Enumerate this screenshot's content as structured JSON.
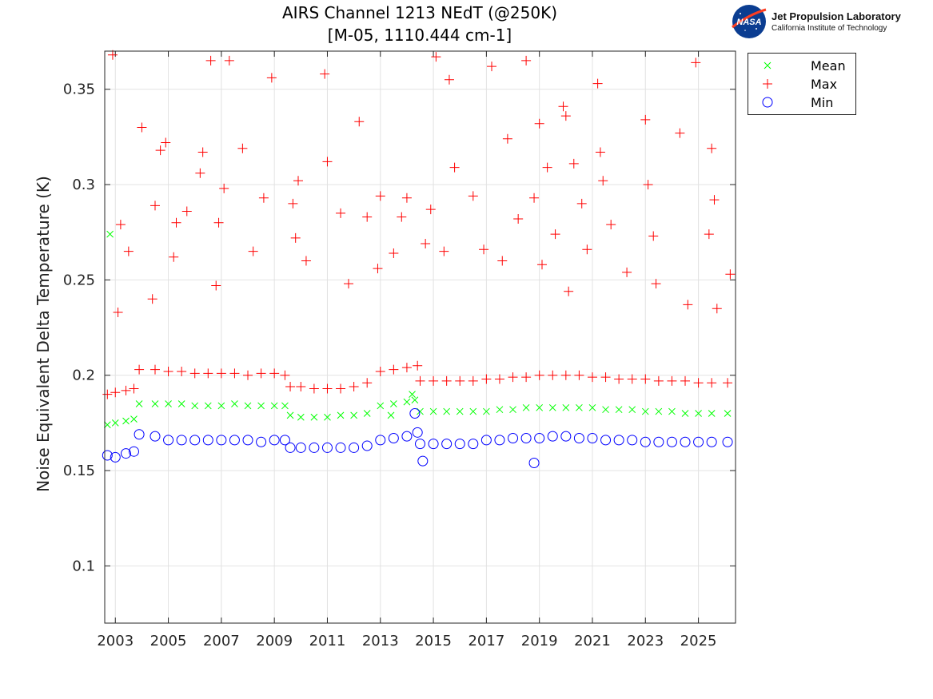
{
  "header": {
    "title_line1": "AIRS Channel 1213 NEdT (@250K)",
    "title_line2": "[M-05, 1110.444 cm-1]"
  },
  "logo": {
    "badge_text": "NASA",
    "org_name": "Jet Propulsion Laboratory",
    "org_subtitle": "California Institute of Technology",
    "badge_color": "#0b3d91",
    "swoosh_color": "#fc3d21"
  },
  "chart_data": {
    "type": "scatter",
    "title": "AIRS Channel 1213 NEdT (@250K)\n[M-05, 1110.444 cm-1]",
    "xlabel": "",
    "ylabel": "Noise Equivalent Delta Temperature (K)",
    "xlim": [
      2002.6,
      2026.4
    ],
    "ylim": [
      0.07,
      0.37
    ],
    "x_ticks": [
      "2003",
      "2005",
      "2007",
      "2009",
      "2011",
      "2013",
      "2015",
      "2017",
      "2019",
      "2021",
      "2023",
      "2025"
    ],
    "y_ticks": [
      "0.1",
      "0.15",
      "0.2",
      "0.25",
      "0.3",
      "0.35"
    ],
    "grid": true,
    "legend_position": "outside-top-right",
    "series": [
      {
        "name": "Mean",
        "marker": "x",
        "color": "#00ff00",
        "points": [
          [
            2002.7,
            0.174
          ],
          [
            2003.0,
            0.175
          ],
          [
            2003.4,
            0.176
          ],
          [
            2003.7,
            0.177
          ],
          [
            2003.9,
            0.185
          ],
          [
            2004.5,
            0.185
          ],
          [
            2005.0,
            0.185
          ],
          [
            2005.5,
            0.185
          ],
          [
            2006.0,
            0.184
          ],
          [
            2006.5,
            0.184
          ],
          [
            2007.0,
            0.184
          ],
          [
            2007.5,
            0.185
          ],
          [
            2008.0,
            0.184
          ],
          [
            2008.5,
            0.184
          ],
          [
            2009.0,
            0.184
          ],
          [
            2009.4,
            0.184
          ],
          [
            2009.6,
            0.179
          ],
          [
            2010.0,
            0.178
          ],
          [
            2010.5,
            0.178
          ],
          [
            2011.0,
            0.178
          ],
          [
            2011.5,
            0.179
          ],
          [
            2012.0,
            0.179
          ],
          [
            2012.5,
            0.18
          ],
          [
            2013.0,
            0.184
          ],
          [
            2013.5,
            0.185
          ],
          [
            2014.0,
            0.186
          ],
          [
            2014.3,
            0.187
          ],
          [
            2014.5,
            0.181
          ],
          [
            2015.0,
            0.181
          ],
          [
            2015.5,
            0.181
          ],
          [
            2016.0,
            0.181
          ],
          [
            2016.5,
            0.181
          ],
          [
            2017.0,
            0.181
          ],
          [
            2017.5,
            0.182
          ],
          [
            2018.0,
            0.182
          ],
          [
            2018.5,
            0.183
          ],
          [
            2019.0,
            0.183
          ],
          [
            2019.5,
            0.183
          ],
          [
            2020.0,
            0.183
          ],
          [
            2020.5,
            0.183
          ],
          [
            2021.0,
            0.183
          ],
          [
            2021.5,
            0.182
          ],
          [
            2022.0,
            0.182
          ],
          [
            2022.5,
            0.182
          ],
          [
            2023.0,
            0.181
          ],
          [
            2023.5,
            0.181
          ],
          [
            2024.0,
            0.181
          ],
          [
            2024.5,
            0.18
          ],
          [
            2025.0,
            0.18
          ],
          [
            2025.5,
            0.18
          ],
          [
            2026.1,
            0.18
          ],
          [
            2002.8,
            0.274
          ],
          [
            2013.4,
            0.179
          ],
          [
            2014.2,
            0.19
          ]
        ]
      },
      {
        "name": "Max",
        "marker": "+",
        "color": "#ff0000",
        "points": [
          [
            2002.7,
            0.19
          ],
          [
            2003.0,
            0.191
          ],
          [
            2003.4,
            0.192
          ],
          [
            2003.7,
            0.193
          ],
          [
            2003.9,
            0.203
          ],
          [
            2004.5,
            0.203
          ],
          [
            2005.0,
            0.202
          ],
          [
            2005.5,
            0.202
          ],
          [
            2006.0,
            0.201
          ],
          [
            2006.5,
            0.201
          ],
          [
            2007.0,
            0.201
          ],
          [
            2007.5,
            0.201
          ],
          [
            2008.0,
            0.2
          ],
          [
            2008.5,
            0.201
          ],
          [
            2009.0,
            0.201
          ],
          [
            2009.4,
            0.2
          ],
          [
            2009.6,
            0.194
          ],
          [
            2010.0,
            0.194
          ],
          [
            2010.5,
            0.193
          ],
          [
            2011.0,
            0.193
          ],
          [
            2011.5,
            0.193
          ],
          [
            2012.0,
            0.194
          ],
          [
            2012.5,
            0.196
          ],
          [
            2013.0,
            0.202
          ],
          [
            2013.5,
            0.203
          ],
          [
            2014.0,
            0.204
          ],
          [
            2014.4,
            0.205
          ],
          [
            2014.5,
            0.197
          ],
          [
            2015.0,
            0.197
          ],
          [
            2015.5,
            0.197
          ],
          [
            2016.0,
            0.197
          ],
          [
            2016.5,
            0.197
          ],
          [
            2017.0,
            0.198
          ],
          [
            2017.5,
            0.198
          ],
          [
            2018.0,
            0.199
          ],
          [
            2018.5,
            0.199
          ],
          [
            2019.0,
            0.2
          ],
          [
            2019.5,
            0.2
          ],
          [
            2020.0,
            0.2
          ],
          [
            2020.5,
            0.2
          ],
          [
            2021.0,
            0.199
          ],
          [
            2021.5,
            0.199
          ],
          [
            2022.0,
            0.198
          ],
          [
            2022.5,
            0.198
          ],
          [
            2023.0,
            0.198
          ],
          [
            2023.5,
            0.197
          ],
          [
            2024.0,
            0.197
          ],
          [
            2024.5,
            0.197
          ],
          [
            2025.0,
            0.196
          ],
          [
            2025.5,
            0.196
          ],
          [
            2026.1,
            0.196
          ],
          [
            2002.9,
            0.368
          ],
          [
            2003.2,
            0.279
          ],
          [
            2003.5,
            0.265
          ],
          [
            2004.0,
            0.33
          ],
          [
            2004.5,
            0.289
          ],
          [
            2004.7,
            0.318
          ],
          [
            2004.9,
            0.322
          ],
          [
            2005.3,
            0.28
          ],
          [
            2005.7,
            0.286
          ],
          [
            2006.2,
            0.306
          ],
          [
            2006.3,
            0.317
          ],
          [
            2006.6,
            0.365
          ],
          [
            2006.9,
            0.28
          ],
          [
            2007.1,
            0.298
          ],
          [
            2007.3,
            0.365
          ],
          [
            2007.8,
            0.319
          ],
          [
            2008.6,
            0.293
          ],
          [
            2008.9,
            0.356
          ],
          [
            2009.7,
            0.29
          ],
          [
            2009.9,
            0.302
          ],
          [
            2010.9,
            0.358
          ],
          [
            2011.0,
            0.312
          ],
          [
            2011.5,
            0.285
          ],
          [
            2012.2,
            0.333
          ],
          [
            2012.5,
            0.283
          ],
          [
            2013.0,
            0.294
          ],
          [
            2013.8,
            0.283
          ],
          [
            2014.0,
            0.293
          ],
          [
            2014.9,
            0.287
          ],
          [
            2015.1,
            0.367
          ],
          [
            2015.6,
            0.355
          ],
          [
            2015.8,
            0.309
          ],
          [
            2016.5,
            0.294
          ],
          [
            2017.2,
            0.362
          ],
          [
            2017.8,
            0.324
          ],
          [
            2018.5,
            0.365
          ],
          [
            2018.8,
            0.293
          ],
          [
            2019.0,
            0.332
          ],
          [
            2019.3,
            0.309
          ],
          [
            2019.9,
            0.341
          ],
          [
            2020.0,
            0.336
          ],
          [
            2020.3,
            0.311
          ],
          [
            2020.6,
            0.29
          ],
          [
            2021.2,
            0.353
          ],
          [
            2021.3,
            0.317
          ],
          [
            2021.4,
            0.302
          ],
          [
            2023.0,
            0.334
          ],
          [
            2023.1,
            0.3
          ],
          [
            2023.3,
            0.273
          ],
          [
            2024.3,
            0.327
          ],
          [
            2024.9,
            0.364
          ],
          [
            2025.5,
            0.319
          ],
          [
            2025.6,
            0.292
          ],
          [
            2025.4,
            0.274
          ],
          [
            2026.2,
            0.253
          ],
          [
            2003.1,
            0.233
          ],
          [
            2004.4,
            0.24
          ],
          [
            2005.2,
            0.262
          ],
          [
            2006.8,
            0.247
          ],
          [
            2008.2,
            0.265
          ],
          [
            2009.8,
            0.272
          ],
          [
            2010.2,
            0.26
          ],
          [
            2011.8,
            0.248
          ],
          [
            2012.9,
            0.256
          ],
          [
            2013.5,
            0.264
          ],
          [
            2014.7,
            0.269
          ],
          [
            2015.4,
            0.265
          ],
          [
            2016.9,
            0.266
          ],
          [
            2017.6,
            0.26
          ],
          [
            2018.2,
            0.282
          ],
          [
            2019.1,
            0.258
          ],
          [
            2019.6,
            0.274
          ],
          [
            2020.1,
            0.244
          ],
          [
            2020.8,
            0.266
          ],
          [
            2021.7,
            0.279
          ],
          [
            2022.3,
            0.254
          ],
          [
            2023.4,
            0.248
          ],
          [
            2024.6,
            0.237
          ],
          [
            2025.7,
            0.235
          ]
        ]
      },
      {
        "name": "Min",
        "marker": "o",
        "color": "#0000ff",
        "points": [
          [
            2002.7,
            0.158
          ],
          [
            2003.0,
            0.157
          ],
          [
            2003.4,
            0.159
          ],
          [
            2003.7,
            0.16
          ],
          [
            2003.9,
            0.169
          ],
          [
            2004.5,
            0.168
          ],
          [
            2005.0,
            0.166
          ],
          [
            2005.5,
            0.166
          ],
          [
            2006.0,
            0.166
          ],
          [
            2006.5,
            0.166
          ],
          [
            2007.0,
            0.166
          ],
          [
            2007.5,
            0.166
          ],
          [
            2008.0,
            0.166
          ],
          [
            2008.5,
            0.165
          ],
          [
            2009.0,
            0.166
          ],
          [
            2009.4,
            0.166
          ],
          [
            2009.6,
            0.162
          ],
          [
            2010.0,
            0.162
          ],
          [
            2010.5,
            0.162
          ],
          [
            2011.0,
            0.162
          ],
          [
            2011.5,
            0.162
          ],
          [
            2012.0,
            0.162
          ],
          [
            2012.5,
            0.163
          ],
          [
            2013.0,
            0.166
          ],
          [
            2013.5,
            0.167
          ],
          [
            2014.0,
            0.168
          ],
          [
            2014.4,
            0.17
          ],
          [
            2014.5,
            0.164
          ],
          [
            2015.0,
            0.164
          ],
          [
            2015.5,
            0.164
          ],
          [
            2016.0,
            0.164
          ],
          [
            2016.5,
            0.164
          ],
          [
            2017.0,
            0.166
          ],
          [
            2017.5,
            0.166
          ],
          [
            2018.0,
            0.167
          ],
          [
            2018.5,
            0.167
          ],
          [
            2019.0,
            0.167
          ],
          [
            2019.5,
            0.168
          ],
          [
            2020.0,
            0.168
          ],
          [
            2020.5,
            0.167
          ],
          [
            2021.0,
            0.167
          ],
          [
            2021.5,
            0.166
          ],
          [
            2022.0,
            0.166
          ],
          [
            2022.5,
            0.166
          ],
          [
            2023.0,
            0.165
          ],
          [
            2023.5,
            0.165
          ],
          [
            2024.0,
            0.165
          ],
          [
            2024.5,
            0.165
          ],
          [
            2025.0,
            0.165
          ],
          [
            2025.5,
            0.165
          ],
          [
            2026.1,
            0.165
          ],
          [
            2018.8,
            0.154
          ],
          [
            2014.3,
            0.18
          ],
          [
            2014.6,
            0.155
          ]
        ]
      }
    ]
  }
}
